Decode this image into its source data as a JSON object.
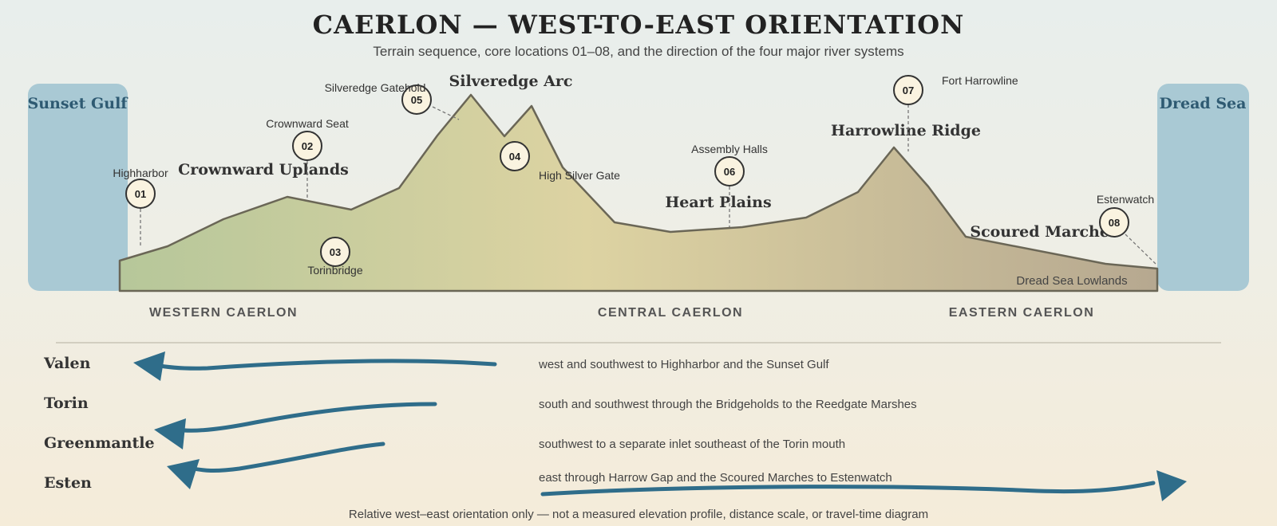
{
  "title": "CAERLON — WEST-TO-EAST ORIENTATION",
  "subtitle": "Terrain sequence, core locations 01–08, and the direction of the four major river systems",
  "seas": {
    "west": "Sunset Gulf",
    "east": "Dread Sea"
  },
  "regions": [
    {
      "name": "Crownward Uplands"
    },
    {
      "name": "Silveredge Arc"
    },
    {
      "name": "Heart Plains"
    },
    {
      "name": "Harrowline Ridge"
    },
    {
      "name": "Scoured Marches"
    },
    {
      "name": "Dread Sea Lowlands"
    }
  ],
  "locations": [
    {
      "num": "01",
      "name": "Highharbor"
    },
    {
      "num": "02",
      "name": "Crownward Seat"
    },
    {
      "num": "03",
      "name": "Torinbridge"
    },
    {
      "num": "04",
      "name": "High Silver Gate"
    },
    {
      "num": "05",
      "name": "Silveredge Gatehold"
    },
    {
      "num": "06",
      "name": "Assembly Halls"
    },
    {
      "num": "07",
      "name": "Fort Harrowline"
    },
    {
      "num": "08",
      "name": "Estenwatch"
    }
  ],
  "zones": [
    "WESTERN CAERLON",
    "CENTRAL CAERLON",
    "EASTERN CAERLON"
  ],
  "rivers": [
    {
      "name": "Valen",
      "direction": "west",
      "desc": "west and southwest to Highharbor and the Sunset Gulf"
    },
    {
      "name": "Torin",
      "direction": "west",
      "desc": "south and southwest through the Bridgeholds to the Reedgate Marshes"
    },
    {
      "name": "Greenmantle",
      "direction": "west",
      "desc": "southwest to a separate inlet southeast of the Torin mouth"
    },
    {
      "name": "Esten",
      "direction": "east",
      "desc": "east through Harrow Gap and the Scoured Marches to Estenwatch"
    }
  ],
  "footnote": "Relative west–east orientation only — not a measured elevation profile, distance scale, or travel-time diagram",
  "colors": {
    "sea": "#a9c9d4",
    "sea_label": "#2e5a72",
    "terrain_west": "#b6c79a",
    "terrain_mid": "#ddd3a2",
    "terrain_east": "#b6a890",
    "terrain_stroke": "#6a6656",
    "river": "#2f6d8a",
    "marker_fill": "#faf3e0",
    "marker_stroke": "#333333"
  }
}
